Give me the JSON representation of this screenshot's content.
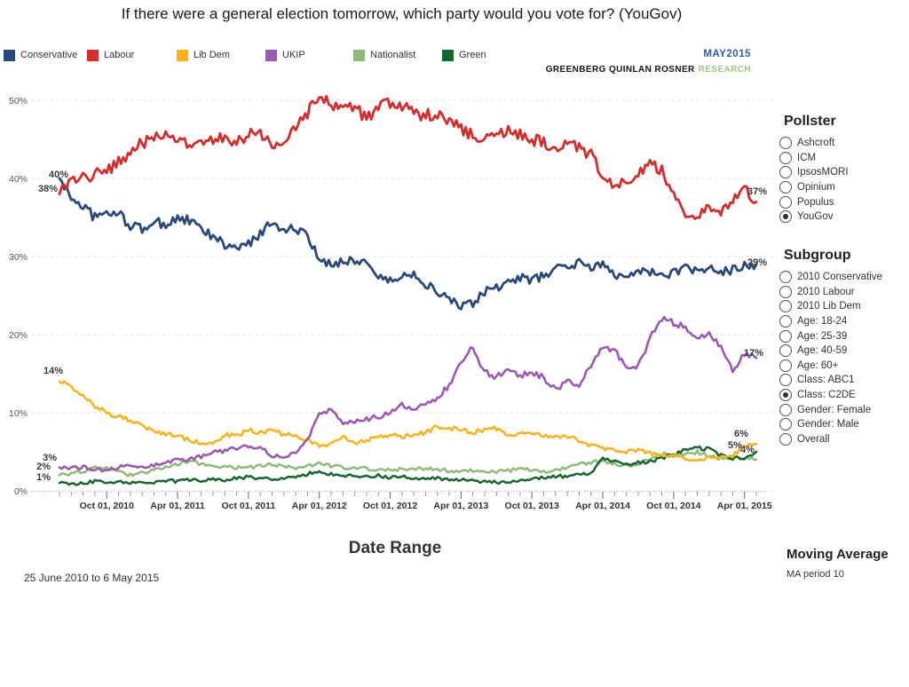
{
  "title": "If there were a general election tomorrow, which party would you vote for? (YouGov)",
  "branding": {
    "date_badge": "MAY2015",
    "date_badge_color": "#2E5FA3",
    "firm": "GREENBERG QUINLAN ROSNER",
    "firm_suffix": "RESEARCH",
    "firm_suffix_color": "#9DC97E"
  },
  "legend": [
    {
      "label": "Conservative",
      "color": "#29497C"
    },
    {
      "label": "Labour",
      "color": "#D62C2C"
    },
    {
      "label": "Lib Dem",
      "color": "#FCB116"
    },
    {
      "label": "UKIP",
      "color": "#9B59B6"
    },
    {
      "label": "Nationalist",
      "color": "#8EBB77"
    },
    {
      "label": "Green",
      "color": "#16662F"
    }
  ],
  "chart_data": {
    "type": "line",
    "title": "If there were a general election tomorrow, which party would you vote for? (YouGov)",
    "x_start_date": "25 June 2010",
    "x_end_date": "6 May 2015",
    "sampling": "monthly",
    "x_tick_labels": [
      "Oct 01, 2010",
      "Apr 01, 2011",
      "Oct 01, 2011",
      "Apr 01, 2012",
      "Oct 01, 2012",
      "Apr 01, 2013",
      "Oct 01, 2013",
      "Apr 01, 2014",
      "Oct 01, 2014",
      "Apr 01, 2015"
    ],
    "y_tick_labels": [
      "0%",
      "10%",
      "20%",
      "30%",
      "40%",
      "50%"
    ],
    "ylim": [
      0,
      52
    ],
    "grid": "horizontal-dashed",
    "legend_position": "top",
    "series": [
      {
        "name": "Conservative",
        "color": "#29497C",
        "start_label": "40%",
        "end_label": "29%",
        "values": [
          40,
          37.5,
          36.5,
          35,
          35.5,
          35.5,
          34,
          33.5,
          34.5,
          34,
          35,
          34.5,
          33.5,
          32.5,
          31.5,
          31,
          31.5,
          33,
          34.5,
          33.5,
          33.5,
          32.5,
          29.5,
          29,
          29.5,
          29.5,
          29.3,
          27.5,
          26.8,
          27.5,
          27.8,
          26.5,
          25.5,
          24.5,
          23.5,
          24,
          25.5,
          26,
          26.5,
          27.4,
          27,
          27.5,
          28.5,
          28.8,
          29.2,
          28.5,
          29,
          27.6,
          27.8,
          28.2,
          28,
          27.5,
          28,
          28.5,
          28,
          28.5,
          28,
          28.3,
          28.8,
          29
        ]
      },
      {
        "name": "Labour",
        "color": "#D62C2C",
        "start_label": "38%",
        "end_label": "37%",
        "values": [
          38,
          39.5,
          40,
          40.5,
          41,
          42,
          43.5,
          44.5,
          45,
          45.5,
          45,
          44,
          44.5,
          45,
          45.5,
          44.5,
          45.5,
          46,
          44,
          44.5,
          46.5,
          48.5,
          50,
          49.5,
          49,
          49.5,
          47.5,
          49,
          49.5,
          49,
          48.5,
          48,
          48.5,
          47.5,
          46.5,
          45.5,
          45,
          45.5,
          46,
          45.5,
          45,
          44.5,
          43.5,
          44.5,
          44,
          43,
          40.5,
          39,
          40,
          40.5,
          42,
          41,
          38,
          35.5,
          35,
          36.5,
          35.5,
          37.5,
          38.8,
          37
        ]
      },
      {
        "name": "Lib Dem",
        "color": "#FCB116",
        "start_label": "14%",
        "end_label": "6%",
        "values": [
          14,
          13.5,
          12,
          10.8,
          10,
          9.5,
          9,
          8.2,
          7.6,
          7.3,
          7,
          6.5,
          6.2,
          6,
          7.2,
          7,
          7.8,
          7.5,
          7.8,
          7.2,
          7,
          6.5,
          5.8,
          6,
          6.8,
          6.2,
          6.5,
          6.8,
          7.2,
          7,
          7.2,
          7.5,
          8.2,
          8,
          7.8,
          7.5,
          7.8,
          8,
          6.9,
          7.2,
          7.5,
          7,
          6.8,
          7,
          6.5,
          5.8,
          5.5,
          5.2,
          5,
          5.2,
          4.8,
          4.6,
          4.5,
          4.2,
          4,
          4.2,
          4.3,
          4.5,
          5.8,
          6
        ]
      },
      {
        "name": "UKIP",
        "color": "#9B59B6",
        "start_label": "3%",
        "end_label": "17%",
        "values": [
          3,
          3,
          3,
          2.8,
          2.6,
          3,
          3.4,
          3,
          3.2,
          3.6,
          4.1,
          4,
          4.4,
          4.9,
          5.1,
          5.5,
          5.7,
          5.5,
          4.5,
          4.2,
          5,
          6.4,
          10,
          10.4,
          8.6,
          9,
          9.2,
          9.5,
          10,
          11,
          10.5,
          11,
          12,
          13.5,
          16.5,
          18.3,
          15.2,
          14.5,
          15.8,
          14.8,
          15,
          14.5,
          13,
          14,
          13.5,
          16,
          18.5,
          18,
          15.5,
          16,
          19.5,
          22,
          21.5,
          20.8,
          19.7,
          20.2,
          18.3,
          15.5,
          17.5,
          17
        ]
      },
      {
        "name": "Nationalist",
        "color": "#8EBB77",
        "start_label": "2%",
        "end_label": "4%",
        "values": [
          2,
          2.2,
          2.5,
          3,
          2.8,
          2.4,
          2,
          2.3,
          2.6,
          3,
          3.4,
          3.8,
          3.4,
          3.2,
          3,
          3,
          3,
          3.2,
          3.4,
          3.2,
          3,
          3.3,
          3.5,
          3.2,
          3,
          2.8,
          2.9,
          2.6,
          2.7,
          2.8,
          2.9,
          2.8,
          2.7,
          2.6,
          2.5,
          2.6,
          2.4,
          2.5,
          2.6,
          2.8,
          2.7,
          2.4,
          2.6,
          3,
          3.5,
          3.6,
          3.8,
          3.5,
          3.2,
          3.5,
          4.1,
          4.7,
          4.5,
          4.6,
          4.9,
          4.5,
          4.1,
          4.3,
          4.2,
          4
        ]
      },
      {
        "name": "Green",
        "color": "#16662F",
        "start_label": "1%",
        "end_label": "5%",
        "values": [
          1,
          0.8,
          1,
          1.2,
          1,
          1.1,
          1,
          1.2,
          1.1,
          1.3,
          1.2,
          1.4,
          1.3,
          1.5,
          1.4,
          1.6,
          1.8,
          1.6,
          1.5,
          1.6,
          1.8,
          2.2,
          2.4,
          2.2,
          1.9,
          2,
          1.8,
          1.9,
          1.7,
          1.8,
          1.6,
          1.5,
          1.6,
          1.4,
          1.5,
          1.3,
          1.2,
          1.1,
          1.2,
          1.4,
          1.5,
          1.7,
          1.8,
          1.9,
          2,
          2.2,
          4,
          3.8,
          3.5,
          3.6,
          3.8,
          4.2,
          4.6,
          5.2,
          5.5,
          5.3,
          4.6,
          4.2,
          4.3,
          5
        ]
      }
    ]
  },
  "pollster_panel": {
    "heading": "Pollster",
    "options": [
      {
        "label": "Ashcroft",
        "selected": false
      },
      {
        "label": "ICM",
        "selected": false
      },
      {
        "label": "IpsosMORI",
        "selected": false
      },
      {
        "label": "Opinium",
        "selected": false
      },
      {
        "label": "Populus",
        "selected": false
      },
      {
        "label": "YouGov",
        "selected": true
      }
    ]
  },
  "subgroup_panel": {
    "heading": "Subgroup",
    "options": [
      {
        "label": "2010 Conservative",
        "selected": false
      },
      {
        "label": "2010 Labour",
        "selected": false
      },
      {
        "label": "2010 Lib Dem",
        "selected": false
      },
      {
        "label": "Age: 18-24",
        "selected": false
      },
      {
        "label": "Age: 25-39",
        "selected": false
      },
      {
        "label": "Age: 40-59",
        "selected": false
      },
      {
        "label": "Age: 60+",
        "selected": false
      },
      {
        "label": "Class: ABC1",
        "selected": false
      },
      {
        "label": "Class: C2DE",
        "selected": true
      },
      {
        "label": "Gender: Female",
        "selected": false
      },
      {
        "label": "Gender: Male",
        "selected": false
      },
      {
        "label": "Overall",
        "selected": false
      }
    ]
  },
  "footer": {
    "date_range_heading": "Date Range",
    "date_range_value": "25 June 2010 to 6 May 2015",
    "moving_average_heading": "Moving Average",
    "moving_average_value": "MA period 10"
  }
}
